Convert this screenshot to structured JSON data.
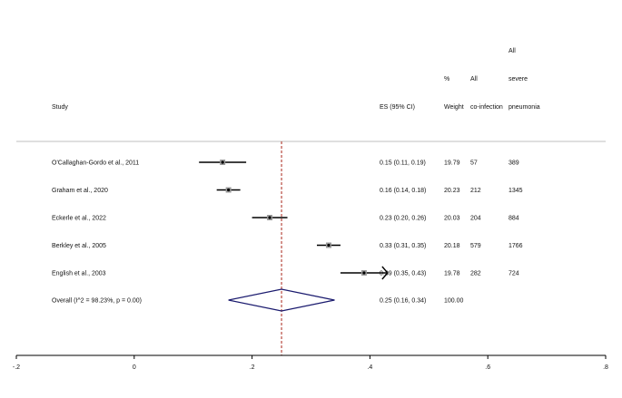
{
  "chart_data": {
    "type": "forest",
    "headers": {
      "study": "Study",
      "es": "ES (95% CI)",
      "weight_top": "%",
      "weight": "Weight",
      "coinf_top": "All",
      "coinf": "co-infection",
      "severe_top1": "All",
      "severe_top2": "severe",
      "severe": "pneumonia"
    },
    "studies": [
      {
        "label": "O'Callaghan-Gordo et al., 2011",
        "es": 0.15,
        "lo": 0.11,
        "hi": 0.19,
        "es_text": "0.15 (0.11, 0.19)",
        "weight": "19.79",
        "coinfection": "57",
        "severe": "389"
      },
      {
        "label": "Graham et al., 2020",
        "es": 0.16,
        "lo": 0.14,
        "hi": 0.18,
        "es_text": "0.16 (0.14, 0.18)",
        "weight": "20.23",
        "coinfection": "212",
        "severe": "1345"
      },
      {
        "label": "Eckerle et al., 2022",
        "es": 0.23,
        "lo": 0.2,
        "hi": 0.26,
        "es_text": "0.23 (0.20, 0.26)",
        "weight": "20.03",
        "coinfection": "204",
        "severe": "884"
      },
      {
        "label": "Berkley et al., 2005",
        "es": 0.33,
        "lo": 0.31,
        "hi": 0.35,
        "es_text": "0.33 (0.31, 0.35)",
        "weight": "20.18",
        "coinfection": "579",
        "severe": "1766"
      },
      {
        "label": "English et al., 2003",
        "es": 0.39,
        "lo": 0.35,
        "hi": 0.43,
        "es_text": "0.39 (0.35, 0.43)",
        "weight": "19.78",
        "coinfection": "282",
        "severe": "724",
        "arrow": true
      }
    ],
    "overall": {
      "label": "Overall  (I^2 = 98.23%, p = 0.00)",
      "es": 0.25,
      "lo": 0.16,
      "hi": 0.34,
      "es_text": "0.25 (0.16, 0.34)",
      "weight": "100.00"
    },
    "xlim": [
      -0.2,
      0.8
    ],
    "xticks": [
      -0.2,
      0,
      0.2,
      0.4,
      0.6,
      0.8
    ],
    "xtick_labels": [
      "-.2",
      "0",
      ".2",
      ".4",
      ".6",
      ".8"
    ],
    "colors": {
      "ci_line": "#000000",
      "point": "#000000",
      "marker_box": "#9a9a9a",
      "overall_line": "#b03a2e",
      "diamond": "#1a1a6e",
      "separator": "#cccccc",
      "axis": "#000000"
    }
  }
}
